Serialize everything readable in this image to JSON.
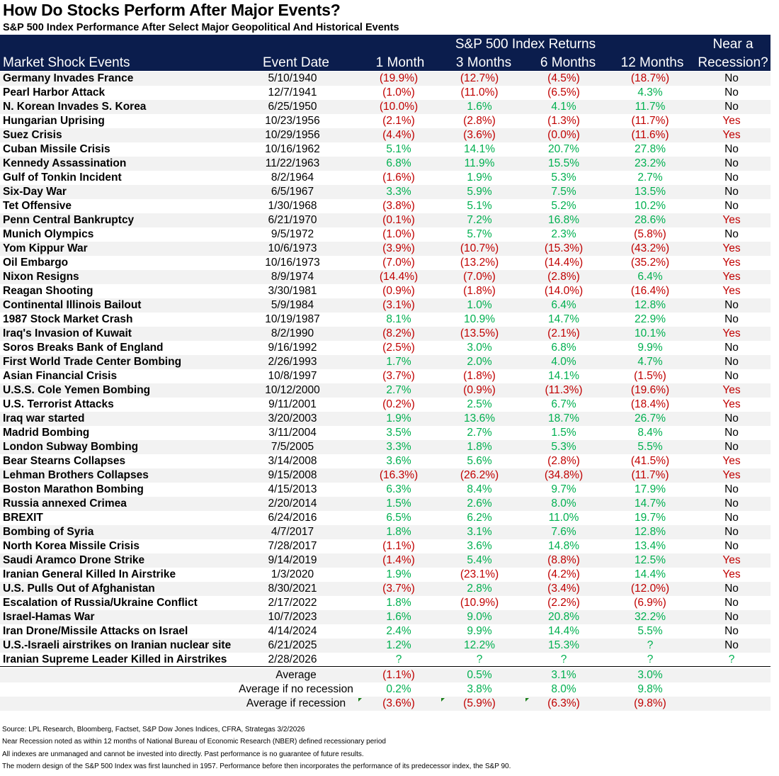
{
  "title": "How Do Stocks Perform After Major Events?",
  "subtitle": "S&P 500 Index Performance After Select Major Geopolitical And Historical Events",
  "colors": {
    "header_bg": "#0b1d4d",
    "negative": "#c00000",
    "positive": "#00b050",
    "row_alt": "#f2f2f2"
  },
  "chart_data": {
    "type": "table",
    "group_header": "S&P 500 Index Returns",
    "columns": [
      "Market Shock Events",
      "Event Date",
      "1 Month",
      "3 Months",
      "6 Months",
      "12 Months",
      "Near a Recession?"
    ],
    "col_header_top": {
      "recession": "Near a"
    },
    "col_header_bottom": {
      "recession": "Recession?"
    },
    "rows": [
      [
        "Germany Invades France",
        "5/10/1940",
        "(19.9%)",
        "(12.7%)",
        "(4.5%)",
        "(18.7%)",
        "No"
      ],
      [
        "Pearl Harbor Attack",
        "12/7/1941",
        "(1.0%)",
        "(11.0%)",
        "(6.5%)",
        "4.3%",
        "No"
      ],
      [
        "N. Korean Invades S. Korea",
        "6/25/1950",
        "(10.0%)",
        "1.6%",
        "4.1%",
        "11.7%",
        "No"
      ],
      [
        "Hungarian Uprising",
        "10/23/1956",
        "(2.1%)",
        "(2.8%)",
        "(1.3%)",
        "(11.7%)",
        "Yes"
      ],
      [
        "Suez Crisis",
        "10/29/1956",
        "(4.4%)",
        "(3.6%)",
        "(0.0%)",
        "(11.6%)",
        "Yes"
      ],
      [
        "Cuban Missile Crisis",
        "10/16/1962",
        "5.1%",
        "14.1%",
        "20.7%",
        "27.8%",
        "No"
      ],
      [
        "Kennedy Assassination",
        "11/22/1963",
        "6.8%",
        "11.9%",
        "15.5%",
        "23.2%",
        "No"
      ],
      [
        "Gulf of Tonkin Incident",
        "8/2/1964",
        "(1.6%)",
        "1.9%",
        "5.3%",
        "2.7%",
        "No"
      ],
      [
        "Six-Day War",
        "6/5/1967",
        "3.3%",
        "5.9%",
        "7.5%",
        "13.5%",
        "No"
      ],
      [
        "Tet Offensive",
        "1/30/1968",
        "(3.8%)",
        "5.1%",
        "5.2%",
        "10.2%",
        "No"
      ],
      [
        "Penn Central Bankruptcy",
        "6/21/1970",
        "(0.1%)",
        "7.2%",
        "16.8%",
        "28.6%",
        "Yes"
      ],
      [
        "Munich Olympics",
        "9/5/1972",
        "(1.0%)",
        "5.7%",
        "2.3%",
        "(5.8%)",
        "No"
      ],
      [
        "Yom Kippur War",
        "10/6/1973",
        "(3.9%)",
        "(10.7%)",
        "(15.3%)",
        "(43.2%)",
        "Yes"
      ],
      [
        "Oil Embargo",
        "10/16/1973",
        "(7.0%)",
        "(13.2%)",
        "(14.4%)",
        "(35.2%)",
        "Yes"
      ],
      [
        "Nixon Resigns",
        "8/9/1974",
        "(14.4%)",
        "(7.0%)",
        "(2.8%)",
        "6.4%",
        "Yes"
      ],
      [
        "Reagan Shooting",
        "3/30/1981",
        "(0.9%)",
        "(1.8%)",
        "(14.0%)",
        "(16.4%)",
        "Yes"
      ],
      [
        "Continental Illinois Bailout",
        "5/9/1984",
        "(3.1%)",
        "1.0%",
        "6.4%",
        "12.8%",
        "No"
      ],
      [
        "1987 Stock Market Crash",
        "10/19/1987",
        "8.1%",
        "10.9%",
        "14.7%",
        "22.9%",
        "No"
      ],
      [
        "Iraq's Invasion of Kuwait",
        "8/2/1990",
        "(8.2%)",
        "(13.5%)",
        "(2.1%)",
        "10.1%",
        "Yes"
      ],
      [
        "Soros Breaks Bank of England",
        "9/16/1992",
        "(2.5%)",
        "3.0%",
        "6.8%",
        "9.9%",
        "No"
      ],
      [
        "First World Trade Center Bombing",
        "2/26/1993",
        "1.7%",
        "2.0%",
        "4.0%",
        "4.7%",
        "No"
      ],
      [
        "Asian Financial Crisis",
        "10/8/1997",
        "(3.7%)",
        "(1.8%)",
        "14.1%",
        "(1.5%)",
        "No"
      ],
      [
        "U.S.S. Cole Yemen Bombing",
        "10/12/2000",
        "2.7%",
        "(0.9%)",
        "(11.3%)",
        "(19.6%)",
        "Yes"
      ],
      [
        "U.S. Terrorist Attacks",
        "9/11/2001",
        "(0.2%)",
        "2.5%",
        "6.7%",
        "(18.4%)",
        "Yes"
      ],
      [
        "Iraq war started",
        "3/20/2003",
        "1.9%",
        "13.6%",
        "18.7%",
        "26.7%",
        "No"
      ],
      [
        "Madrid Bombing",
        "3/11/2004",
        "3.5%",
        "2.7%",
        "1.5%",
        "8.4%",
        "No"
      ],
      [
        "London Subway Bombing",
        "7/5/2005",
        "3.3%",
        "1.8%",
        "5.3%",
        "5.5%",
        "No"
      ],
      [
        "Bear Stearns Collapses",
        "3/14/2008",
        "3.6%",
        "5.6%",
        "(2.8%)",
        "(41.5%)",
        "Yes"
      ],
      [
        "Lehman Brothers Collapses",
        "9/15/2008",
        "(16.3%)",
        "(26.2%)",
        "(34.8%)",
        "(11.7%)",
        "Yes"
      ],
      [
        "Boston Marathon Bombing",
        "4/15/2013",
        "6.3%",
        "8.4%",
        "9.7%",
        "17.9%",
        "No"
      ],
      [
        "Russia annexed Crimea",
        "2/20/2014",
        "1.5%",
        "2.6%",
        "8.0%",
        "14.7%",
        "No"
      ],
      [
        "BREXIT",
        "6/24/2016",
        "6.5%",
        "6.2%",
        "11.0%",
        "19.7%",
        "No"
      ],
      [
        "Bombing of Syria",
        "4/7/2017",
        "1.8%",
        "3.1%",
        "7.6%",
        "12.8%",
        "No"
      ],
      [
        "North Korea Missile Crisis",
        "7/28/2017",
        "(1.1%)",
        "3.6%",
        "14.8%",
        "13.4%",
        "No"
      ],
      [
        "Saudi Aramco Drone Strike",
        "9/14/2019",
        "(1.4%)",
        "5.4%",
        "(8.8%)",
        "12.5%",
        "Yes"
      ],
      [
        "Iranian General Killed In Airstrike",
        "1/3/2020",
        "1.9%",
        "(23.1%)",
        "(4.2%)",
        "14.4%",
        "Yes"
      ],
      [
        "U.S. Pulls Out of Afghanistan",
        "8/30/2021",
        "(3.7%)",
        "2.8%",
        "(3.4%)",
        "(12.0%)",
        "No"
      ],
      [
        "Escalation of Russia/Ukraine Conflict",
        "2/17/2022",
        "1.8%",
        "(10.9%)",
        "(2.2%)",
        "(6.9%)",
        "No"
      ],
      [
        "Israel-Hamas War",
        "10/7/2023",
        "1.6%",
        "9.0%",
        "20.8%",
        "32.2%",
        "No"
      ],
      [
        "Iran Drone/Missile Attacks on Israel",
        "4/14/2024",
        "2.4%",
        "9.9%",
        "14.4%",
        "5.5%",
        "No"
      ],
      [
        "U.S.-Israeli airstrikes on Iranian nuclear site",
        "6/21/2025",
        "1.2%",
        "12.2%",
        "15.3%",
        "?",
        "No"
      ],
      [
        "Iranian Supreme Leader Killed in Airstrikes",
        "2/28/2026",
        "?",
        "?",
        "?",
        "?",
        "?"
      ]
    ],
    "averages": [
      [
        "Average",
        "(1.1%)",
        "0.5%",
        "3.1%",
        "3.0%"
      ],
      [
        "Average if no recession",
        "0.2%",
        "3.8%",
        "8.0%",
        "9.8%"
      ],
      [
        "Average if recession",
        "(3.6%)",
        "(5.9%)",
        "(6.3%)",
        "(9.8%)"
      ]
    ]
  },
  "notes": [
    "Source: LPL Research, Bloomberg, Factset, S&P Dow Jones Indices, CFRA, Strategas 3/2/2026",
    "Near Recession noted as within 12 months of National Bureau of Economic Research (NBER) defined recessionary period",
    "All indexes are unmanaged and cannot be invested into directly.  Past performance is no guarantee of future results.",
    "The modern design of the S&P 500 Index was first launched in 1957. Performance before then incorporates the performance of its predecessor index, the S&P 90."
  ]
}
